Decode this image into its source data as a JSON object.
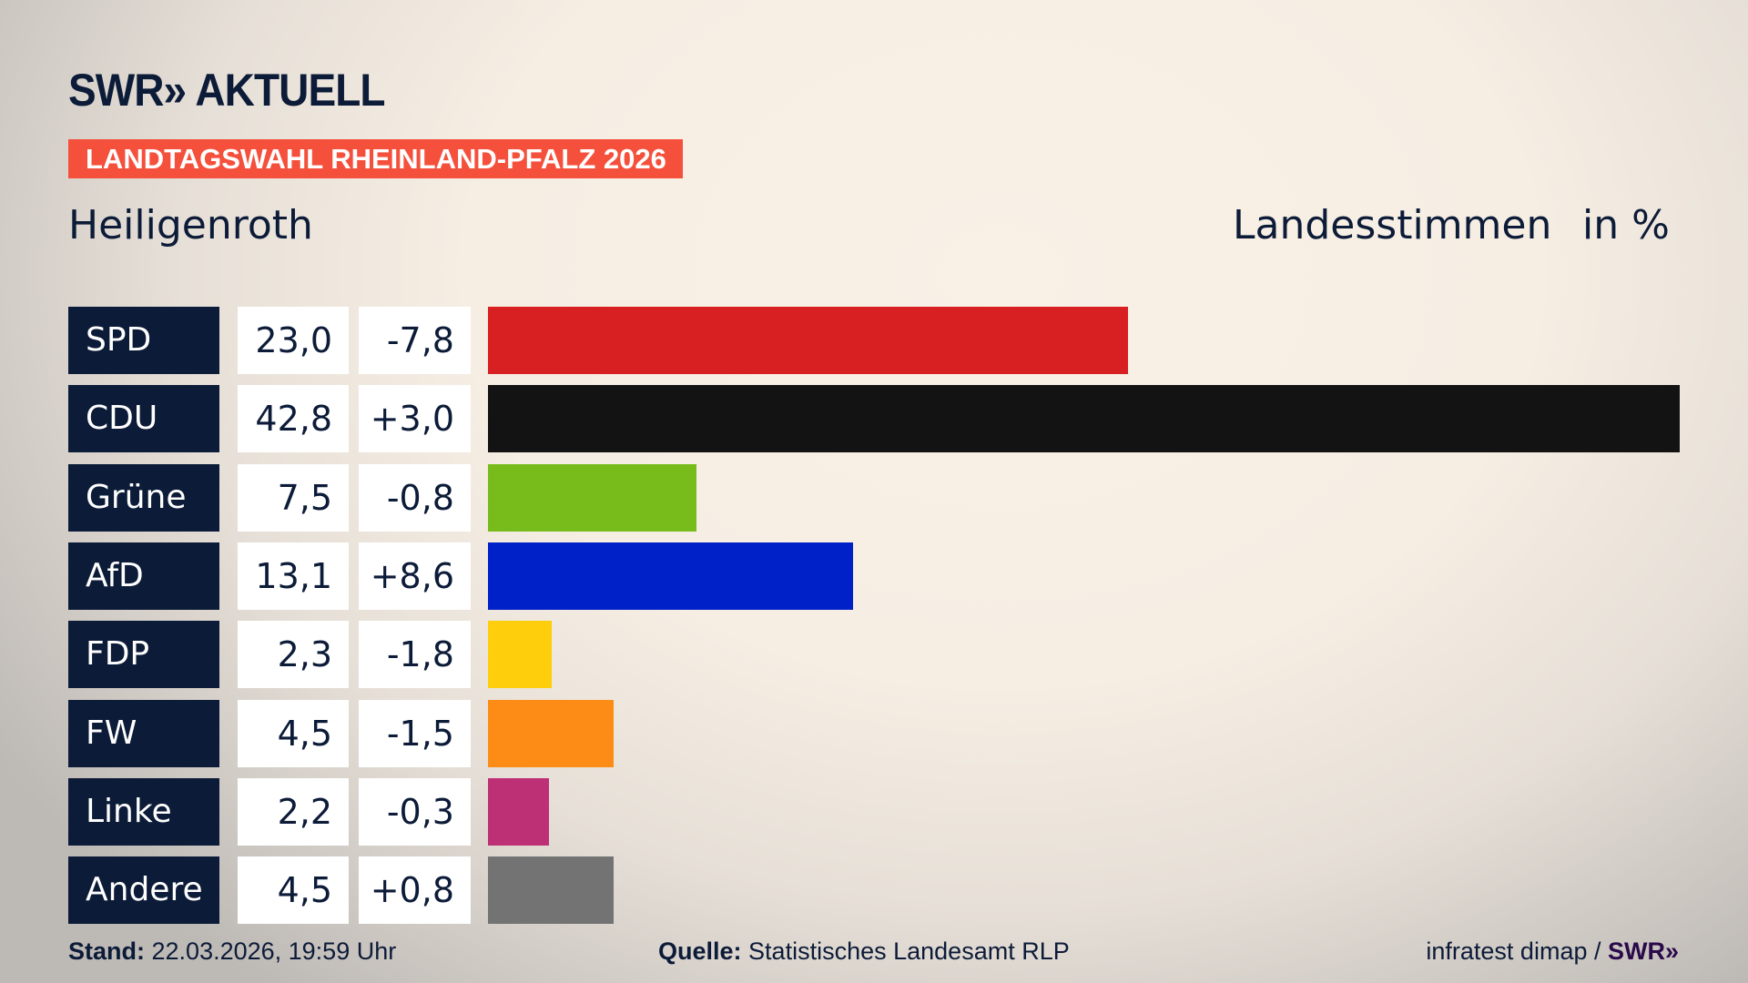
{
  "header": {
    "logo": "SWR» AKTUELL",
    "banner": "LANDTAGSWAHL RHEINLAND-PFALZ 2026",
    "place": "Heiligenroth",
    "metric": "Landesstimmen",
    "unit": "in %"
  },
  "chart_data": {
    "type": "bar",
    "orientation": "horizontal",
    "categories": [
      "SPD",
      "CDU",
      "Grüne",
      "AfD",
      "FDP",
      "FW",
      "Linke",
      "Andere"
    ],
    "values": [
      23.0,
      42.8,
      7.5,
      13.1,
      2.3,
      4.5,
      2.2,
      4.5
    ],
    "value_labels": [
      "23,0",
      "42,8",
      "7,5",
      "13,1",
      "2,3",
      "4,5",
      "2,2",
      "4,5"
    ],
    "diff_labels": [
      "-7,8",
      "+3,0",
      "-0,8",
      "+8,6",
      "-1,8",
      "-1,5",
      "-0,3",
      "+0,8"
    ],
    "colors": [
      "#d81f21",
      "#131313",
      "#78bc1b",
      "#0020c8",
      "#fecd0b",
      "#fd8c17",
      "#be3075",
      "#737373"
    ],
    "xlim": [
      0,
      42.8
    ],
    "grid": false
  },
  "footer": {
    "stand_label": "Stand:",
    "stand_value": "22.03.2026, 19:59 Uhr",
    "source_label": "Quelle:",
    "source_value": "Statistisches Landesamt RLP",
    "credit": "infratest dimap / ",
    "credit_logo": "SWR»"
  }
}
